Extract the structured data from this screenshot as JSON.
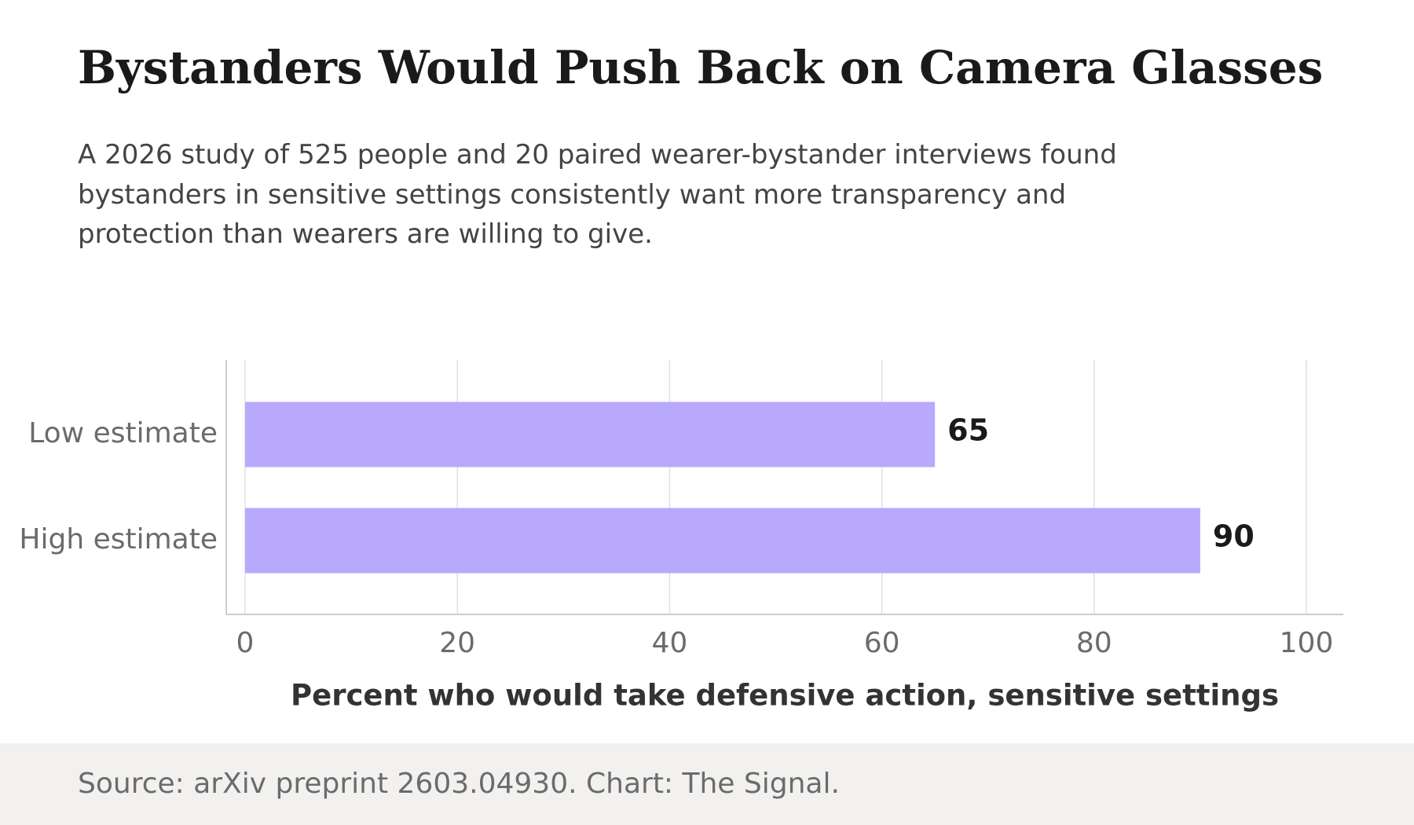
{
  "title": "Bystanders Would Push Back on Camera Glasses",
  "subtitle": "A 2026 study of 525 people and 20 paired wearer-bystander interviews found bystanders in sensitive settings consistently want more transparency and protection than wearers are willing to give.",
  "source": "Source: arXiv preprint 2603.04930. Chart: The Signal.",
  "colors": {
    "bar": "#b8a9fc",
    "grid": "#e0e0e0",
    "axis": "#cccccc",
    "tick_text": "#6b6b6b",
    "value_text": "#1a1a1a",
    "footer_bg": "#f2f1ef"
  },
  "chart_data": {
    "type": "bar",
    "orientation": "horizontal",
    "categories": [
      "Low estimate",
      "High estimate"
    ],
    "values": [
      65,
      90
    ],
    "data_labels": [
      "65",
      "90"
    ],
    "xlabel": "Percent who would take defensive action, sensitive settings",
    "ylabel": "",
    "xlim": [
      0,
      100
    ],
    "xticks": [
      0,
      20,
      40,
      60,
      80,
      100
    ],
    "xtick_labels": [
      "0",
      "20",
      "40",
      "60",
      "80",
      "100"
    ],
    "grid": true,
    "legend": "none"
  }
}
